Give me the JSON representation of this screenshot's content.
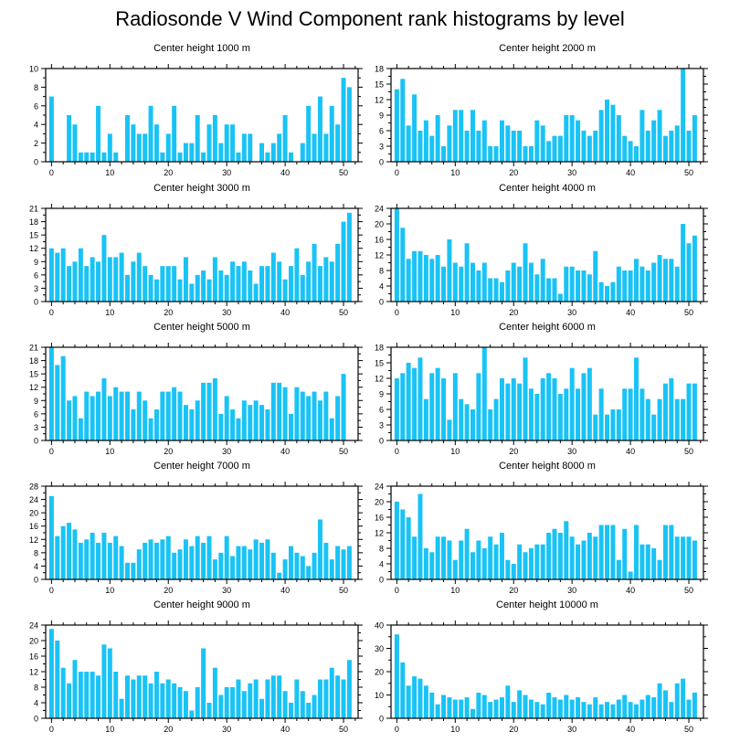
{
  "title": "Radiosonde V Wind Component rank histograms by level",
  "colors": {
    "bar": "#19C3F5",
    "axis": "#000000",
    "background": "#ffffff"
  },
  "chart_data": [
    {
      "type": "bar",
      "title": "Center height 1000 m",
      "ylim": [
        0,
        10
      ],
      "yticks": [
        0,
        2,
        4,
        6,
        8,
        10
      ],
      "xlim": [
        -1,
        52.5
      ],
      "xticks": [
        0,
        10,
        20,
        30,
        40,
        50
      ],
      "values": [
        7,
        0,
        0,
        5,
        4,
        1,
        1,
        1,
        6,
        1,
        3,
        1,
        0,
        5,
        4,
        3,
        3,
        6,
        4,
        1,
        3,
        6,
        1,
        2,
        2,
        5,
        1,
        4,
        5,
        2,
        4,
        4,
        1,
        3,
        3,
        0,
        2,
        1,
        2,
        3,
        5,
        1,
        0,
        2,
        6,
        3,
        7,
        3,
        6,
        4,
        9,
        8
      ]
    },
    {
      "type": "bar",
      "title": "Center height 2000 m",
      "ylim": [
        0,
        18
      ],
      "yticks": [
        0,
        3,
        6,
        9,
        12,
        15,
        18
      ],
      "xlim": [
        -1,
        52.5
      ],
      "xticks": [
        0,
        10,
        20,
        30,
        40,
        50
      ],
      "values": [
        14,
        16,
        7,
        13,
        6,
        8,
        5,
        9,
        3,
        7,
        10,
        10,
        6,
        10,
        6,
        8,
        3,
        3,
        8,
        7,
        6,
        6,
        3,
        3,
        8,
        7,
        4,
        5,
        5,
        9,
        9,
        8,
        6,
        5,
        6,
        10,
        12,
        11,
        9,
        5,
        4,
        3,
        10,
        6,
        8,
        10,
        5,
        6,
        7,
        18,
        6,
        9
      ]
    },
    {
      "type": "bar",
      "title": "Center height 3000 m",
      "ylim": [
        0,
        21
      ],
      "yticks": [
        0,
        3,
        6,
        9,
        12,
        15,
        18,
        21
      ],
      "xlim": [
        -1,
        52.5
      ],
      "xticks": [
        0,
        10,
        20,
        30,
        40,
        50
      ],
      "values": [
        12,
        11,
        12,
        8,
        9,
        12,
        8,
        10,
        9,
        15,
        10,
        10,
        11,
        6,
        9,
        11,
        8,
        6,
        5,
        8,
        8,
        8,
        5,
        10,
        4,
        6,
        7,
        5,
        10,
        7,
        6,
        9,
        8,
        9,
        7,
        4,
        8,
        8,
        11,
        9,
        5,
        8,
        12,
        6,
        9,
        13,
        8,
        10,
        9,
        13,
        18,
        20
      ]
    },
    {
      "type": "bar",
      "title": "Center height 4000 m",
      "ylim": [
        0,
        24
      ],
      "yticks": [
        0,
        4,
        8,
        12,
        16,
        20,
        24
      ],
      "xlim": [
        -1,
        52.5
      ],
      "xticks": [
        0,
        10,
        20,
        30,
        40,
        50
      ],
      "values": [
        24,
        19,
        11,
        13,
        13,
        12,
        11,
        12,
        9,
        16,
        10,
        9,
        15,
        10,
        8,
        10,
        6,
        6,
        5,
        8,
        10,
        9,
        15,
        10,
        7,
        11,
        6,
        6,
        2,
        9,
        9,
        8,
        8,
        7,
        13,
        5,
        4,
        5,
        9,
        8,
        8,
        11,
        9,
        8,
        10,
        12,
        11,
        11,
        9,
        20,
        15,
        17
      ]
    },
    {
      "type": "bar",
      "title": "Center height 5000 m",
      "ylim": [
        0,
        21
      ],
      "yticks": [
        0,
        3,
        6,
        9,
        12,
        15,
        18,
        21
      ],
      "xlim": [
        -1,
        52.5
      ],
      "xticks": [
        0,
        10,
        20,
        30,
        40,
        50
      ],
      "values": [
        21,
        17,
        19,
        9,
        10,
        5,
        11,
        10,
        11,
        14,
        10,
        12,
        11,
        11,
        7,
        11,
        9,
        5,
        7,
        11,
        11,
        12,
        11,
        8,
        7,
        9,
        13,
        13,
        14,
        6,
        10,
        7,
        5,
        9,
        8,
        9,
        8,
        7,
        13,
        13,
        12,
        6,
        12,
        11,
        10,
        11,
        9,
        11,
        5,
        10,
        15,
        0
      ]
    },
    {
      "type": "bar",
      "title": "Center height 6000 m",
      "ylim": [
        0,
        18
      ],
      "yticks": [
        0,
        3,
        6,
        9,
        12,
        15,
        18
      ],
      "xlim": [
        -1,
        52.5
      ],
      "xticks": [
        0,
        10,
        20,
        30,
        40,
        50
      ],
      "values": [
        12,
        13,
        15,
        14,
        16,
        8,
        13,
        14,
        12,
        4,
        13,
        8,
        7,
        6,
        13,
        18,
        6,
        8,
        12,
        11,
        12,
        11,
        16,
        10,
        9,
        12,
        13,
        12,
        9,
        10,
        14,
        10,
        13,
        14,
        5,
        10,
        5,
        6,
        6,
        10,
        10,
        16,
        10,
        8,
        5,
        8,
        11,
        12,
        8,
        8,
        11,
        11
      ]
    },
    {
      "type": "bar",
      "title": "Center height 7000 m",
      "ylim": [
        0,
        28
      ],
      "yticks": [
        0,
        4,
        8,
        12,
        16,
        20,
        24,
        28
      ],
      "xlim": [
        -1,
        52.5
      ],
      "xticks": [
        0,
        10,
        20,
        30,
        40,
        50
      ],
      "values": [
        25,
        13,
        16,
        17,
        15,
        11,
        12,
        14,
        11,
        14,
        11,
        13,
        10,
        5,
        5,
        9,
        11,
        12,
        11,
        12,
        13,
        8,
        9,
        12,
        10,
        13,
        11,
        13,
        6,
        8,
        13,
        7,
        10,
        10,
        9,
        12,
        11,
        12,
        8,
        2,
        6,
        10,
        8,
        7,
        4,
        8,
        18,
        11,
        6,
        10,
        9,
        10
      ]
    },
    {
      "type": "bar",
      "title": "Center height 8000 m",
      "ylim": [
        0,
        24
      ],
      "yticks": [
        0,
        4,
        8,
        12,
        16,
        20,
        24
      ],
      "xlim": [
        -1,
        52.5
      ],
      "xticks": [
        0,
        10,
        20,
        30,
        40,
        50
      ],
      "values": [
        20,
        18,
        16,
        11,
        22,
        8,
        7,
        11,
        11,
        10,
        5,
        10,
        13,
        7,
        10,
        8,
        11,
        9,
        12,
        5,
        4,
        9,
        7,
        8,
        9,
        9,
        12,
        13,
        12,
        15,
        11,
        9,
        10,
        12,
        11,
        14,
        14,
        14,
        5,
        13,
        2,
        14,
        9,
        9,
        8,
        5,
        14,
        14,
        11,
        11,
        11,
        10
      ]
    },
    {
      "type": "bar",
      "title": "Center height 9000 m",
      "ylim": [
        0,
        24
      ],
      "yticks": [
        0,
        4,
        8,
        12,
        16,
        20,
        24
      ],
      "xlim": [
        -1,
        52.5
      ],
      "xticks": [
        0,
        10,
        20,
        30,
        40,
        50
      ],
      "values": [
        23,
        20,
        13,
        9,
        15,
        12,
        12,
        12,
        11,
        19,
        18,
        12,
        5,
        11,
        10,
        11,
        11,
        9,
        12,
        9,
        10,
        9,
        8,
        7,
        2,
        8,
        18,
        4,
        13,
        6,
        8,
        8,
        10,
        7,
        9,
        10,
        5,
        10,
        11,
        11,
        7,
        4,
        10,
        7,
        4,
        6,
        10,
        10,
        13,
        11,
        10,
        15
      ]
    },
    {
      "type": "bar",
      "title": "Center height 10000 m",
      "ylim": [
        0,
        40
      ],
      "yticks": [
        0,
        10,
        20,
        30,
        40
      ],
      "xlim": [
        -1,
        52.5
      ],
      "xticks": [
        0,
        10,
        20,
        30,
        40,
        50
      ],
      "values": [
        36,
        24,
        14,
        18,
        17,
        14,
        11,
        6,
        10,
        9,
        8,
        8,
        9,
        4,
        11,
        10,
        7,
        8,
        9,
        14,
        7,
        12,
        10,
        8,
        7,
        6,
        11,
        9,
        8,
        10,
        8,
        9,
        7,
        6,
        9,
        6,
        7,
        6,
        8,
        10,
        7,
        6,
        8,
        10,
        9,
        15,
        12,
        7,
        15,
        17,
        8,
        11
      ]
    }
  ]
}
